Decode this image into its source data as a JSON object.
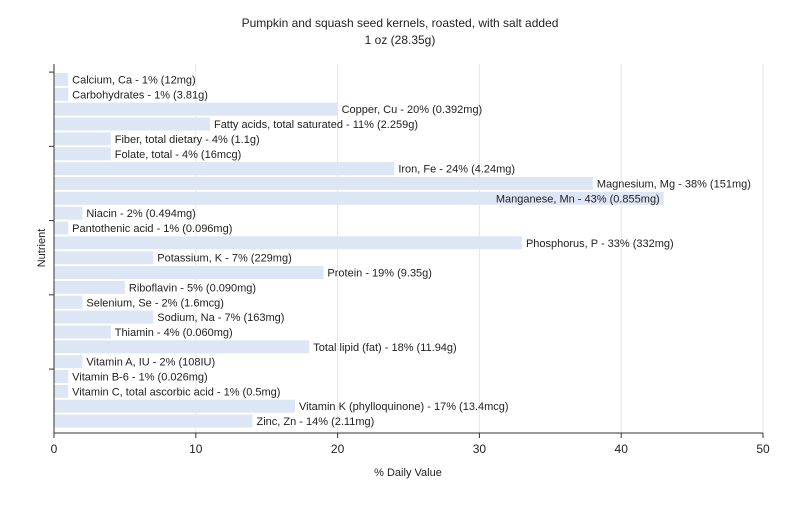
{
  "chart_data": {
    "type": "bar",
    "orientation": "horizontal",
    "title": "Pumpkin and squash seed kernels, roasted, with salt added",
    "subtitle": "1 oz (28.35g)",
    "xlabel": "% Daily Value",
    "ylabel": "Nutrient",
    "xlim": [
      0,
      50
    ],
    "xticks": [
      0,
      10,
      20,
      30,
      40,
      50
    ],
    "grid": true,
    "colors": {
      "bar": "#dde6f4",
      "grid": "#e6e6e6",
      "axis": "#333333",
      "plot_bg": "#ffffff"
    },
    "bars": [
      {
        "name": "Calcium, Ca",
        "value": 1,
        "label": "Calcium, Ca - 1% (12mg)"
      },
      {
        "name": "Carbohydrates",
        "value": 1,
        "label": "Carbohydrates - 1% (3.81g)"
      },
      {
        "name": "Copper, Cu",
        "value": 20,
        "label": "Copper, Cu - 20% (0.392mg)"
      },
      {
        "name": "Fatty acids, total saturated",
        "value": 11,
        "label": "Fatty acids, total saturated - 11% (2.259g)"
      },
      {
        "name": "Fiber, total dietary",
        "value": 4,
        "label": "Fiber, total dietary - 4% (1.1g)"
      },
      {
        "name": "Folate, total",
        "value": 4,
        "label": "Folate, total - 4% (16mcg)"
      },
      {
        "name": "Iron, Fe",
        "value": 24,
        "label": "Iron, Fe - 24% (4.24mg)"
      },
      {
        "name": "Magnesium, Mg",
        "value": 38,
        "label": "Magnesium, Mg - 38% (151mg)"
      },
      {
        "name": "Manganese, Mn",
        "value": 43,
        "label": "Manganese, Mn - 43% (0.855mg)"
      },
      {
        "name": "Niacin",
        "value": 2,
        "label": "Niacin - 2% (0.494mg)"
      },
      {
        "name": "Pantothenic acid",
        "value": 1,
        "label": "Pantothenic acid - 1% (0.096mg)"
      },
      {
        "name": "Phosphorus, P",
        "value": 33,
        "label": "Phosphorus, P - 33% (332mg)"
      },
      {
        "name": "Potassium, K",
        "value": 7,
        "label": "Potassium, K - 7% (229mg)"
      },
      {
        "name": "Protein",
        "value": 19,
        "label": "Protein - 19% (9.35g)"
      },
      {
        "name": "Riboflavin",
        "value": 5,
        "label": "Riboflavin - 5% (0.090mg)"
      },
      {
        "name": "Selenium, Se",
        "value": 2,
        "label": "Selenium, Se - 2% (1.6mcg)"
      },
      {
        "name": "Sodium, Na",
        "value": 7,
        "label": "Sodium, Na - 7% (163mg)"
      },
      {
        "name": "Thiamin",
        "value": 4,
        "label": "Thiamin - 4% (0.060mg)"
      },
      {
        "name": "Total lipid (fat)",
        "value": 18,
        "label": "Total lipid (fat) - 18% (11.94g)"
      },
      {
        "name": "Vitamin A, IU",
        "value": 2,
        "label": "Vitamin A, IU - 2% (108IU)"
      },
      {
        "name": "Vitamin B-6",
        "value": 1,
        "label": "Vitamin B-6 - 1% (0.026mg)"
      },
      {
        "name": "Vitamin C, total ascorbic acid",
        "value": 1,
        "label": "Vitamin C, total ascorbic acid - 1% (0.5mg)"
      },
      {
        "name": "Vitamin K (phylloquinone)",
        "value": 17,
        "label": "Vitamin K (phylloquinone) - 17% (13.4mcg)"
      },
      {
        "name": "Zinc, Zn",
        "value": 14,
        "label": "Zinc, Zn - 14% (2.11mg)"
      }
    ]
  }
}
